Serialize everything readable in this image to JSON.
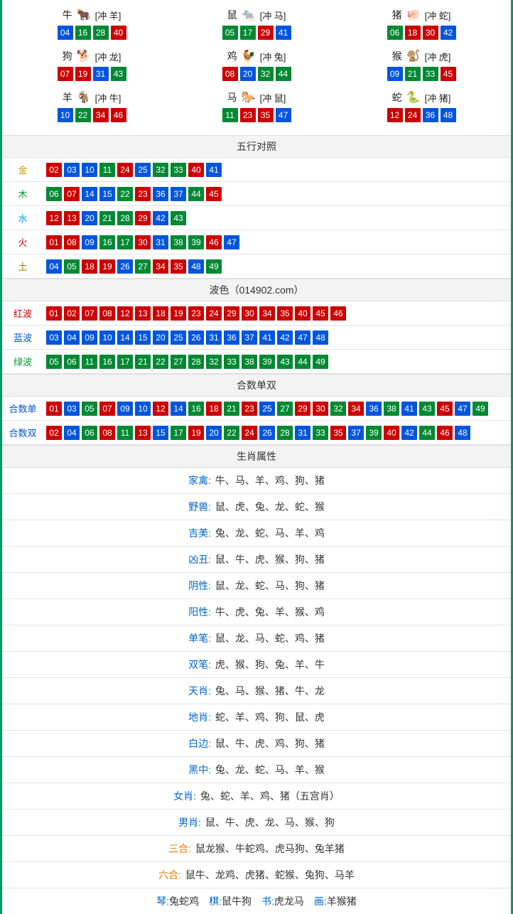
{
  "colors": {
    "border": "#009966",
    "red": "#cc0000",
    "blue": "#0055dd",
    "green": "#008833",
    "row_border": "#e3e3e3",
    "head_bg": "#f3f3f3",
    "link": "#0066cc"
  },
  "ball_style": {
    "width": 22,
    "height": 20,
    "fontsize": 12,
    "gap": 3,
    "radius": 1
  },
  "zodiac": [
    {
      "name": "牛",
      "chong": "[冲 羊]",
      "icon": "🐂",
      "icon_color": "#cc3333",
      "nums": [
        "04",
        "16",
        "28",
        "40"
      ]
    },
    {
      "name": "鼠",
      "chong": "[冲 马]",
      "icon": "🐀",
      "icon_color": "#66bbdd",
      "nums": [
        "05",
        "17",
        "29",
        "41"
      ]
    },
    {
      "name": "猪",
      "chong": "[冲 蛇]",
      "icon": "🐖",
      "icon_color": "#ee88aa",
      "nums": [
        "06",
        "18",
        "30",
        "42"
      ]
    },
    {
      "name": "狗",
      "chong": "[冲 龙]",
      "icon": "🐕",
      "icon_color": "#88bbee",
      "nums": [
        "07",
        "19",
        "31",
        "43"
      ]
    },
    {
      "name": "鸡",
      "chong": "[冲 兔]",
      "icon": "🐓",
      "icon_color": "#eeaa33",
      "nums": [
        "08",
        "20",
        "32",
        "44"
      ]
    },
    {
      "name": "猴",
      "chong": "[冲 虎]",
      "icon": "🐒",
      "icon_color": "#dd7733",
      "nums": [
        "09",
        "21",
        "33",
        "45"
      ]
    },
    {
      "name": "羊",
      "chong": "[冲 牛]",
      "icon": "🐐",
      "icon_color": "#ddbb55",
      "nums": [
        "10",
        "22",
        "34",
        "46"
      ]
    },
    {
      "name": "马",
      "chong": "[冲 鼠]",
      "icon": "🐎",
      "icon_color": "#cc4433",
      "nums": [
        "11",
        "23",
        "35",
        "47"
      ]
    },
    {
      "name": "蛇",
      "chong": "[冲 猪]",
      "icon": "🐍",
      "icon_color": "#55aa44",
      "nums": [
        "12",
        "24",
        "36",
        "48"
      ]
    }
  ],
  "wuxing_title": "五行对照",
  "wuxing": [
    {
      "label": "金",
      "class": "c-gold",
      "nums": [
        "02",
        "03",
        "10",
        "11",
        "24",
        "25",
        "32",
        "33",
        "40",
        "41"
      ]
    },
    {
      "label": "木",
      "class": "c-wood",
      "nums": [
        "06",
        "07",
        "14",
        "15",
        "22",
        "23",
        "36",
        "37",
        "44",
        "45"
      ]
    },
    {
      "label": "水",
      "class": "c-water",
      "nums": [
        "12",
        "13",
        "20",
        "21",
        "28",
        "29",
        "42",
        "43"
      ]
    },
    {
      "label": "火",
      "class": "c-fire",
      "nums": [
        "01",
        "08",
        "09",
        "16",
        "17",
        "30",
        "31",
        "38",
        "39",
        "46",
        "47"
      ]
    },
    {
      "label": "土",
      "class": "c-earth",
      "nums": [
        "04",
        "05",
        "18",
        "19",
        "26",
        "27",
        "34",
        "35",
        "48",
        "49"
      ]
    }
  ],
  "bose_title": "波色（014902.com）",
  "bose": [
    {
      "label": "红波",
      "class": "c-red",
      "nums": [
        "01",
        "02",
        "07",
        "08",
        "12",
        "13",
        "18",
        "19",
        "23",
        "24",
        "29",
        "30",
        "34",
        "35",
        "40",
        "45",
        "46"
      ]
    },
    {
      "label": "蓝波",
      "class": "c-blue",
      "nums": [
        "03",
        "04",
        "09",
        "10",
        "14",
        "15",
        "20",
        "25",
        "26",
        "31",
        "36",
        "37",
        "41",
        "42",
        "47",
        "48"
      ]
    },
    {
      "label": "绿波",
      "class": "c-green",
      "nums": [
        "05",
        "06",
        "11",
        "16",
        "17",
        "21",
        "22",
        "27",
        "28",
        "32",
        "33",
        "38",
        "39",
        "43",
        "44",
        "49"
      ]
    }
  ],
  "heshu_title": "合数单双",
  "heshu": [
    {
      "label": "合数单",
      "class": "c-blue",
      "nums": [
        "01",
        "03",
        "05",
        "07",
        "09",
        "10",
        "12",
        "14",
        "16",
        "18",
        "21",
        "23",
        "25",
        "27",
        "29",
        "30",
        "32",
        "34",
        "36",
        "38",
        "41",
        "43",
        "45",
        "47",
        "49"
      ]
    },
    {
      "label": "合数双",
      "class": "c-blue",
      "nums": [
        "02",
        "04",
        "06",
        "08",
        "11",
        "13",
        "15",
        "17",
        "19",
        "20",
        "22",
        "24",
        "26",
        "28",
        "31",
        "33",
        "35",
        "37",
        "39",
        "40",
        "42",
        "44",
        "46",
        "48"
      ]
    }
  ],
  "attr_title": "生肖属性",
  "attrs": [
    {
      "label": "家禽",
      "value": "牛、马、羊、鸡、狗、猪"
    },
    {
      "label": "野兽",
      "value": "鼠、虎、兔、龙、蛇、猴"
    },
    {
      "label": "吉美",
      "value": "兔、龙、蛇、马、羊、鸡"
    },
    {
      "label": "凶丑",
      "value": "鼠、牛、虎、猴、狗、猪"
    },
    {
      "label": "阴性",
      "value": "鼠、龙、蛇、马、狗、猪"
    },
    {
      "label": "阳性",
      "value": "牛、虎、兔、羊、猴、鸡"
    },
    {
      "label": "单笔",
      "value": "鼠、龙、马、蛇、鸡、猪"
    },
    {
      "label": "双笔",
      "value": "虎、猴、狗、兔、羊、牛"
    },
    {
      "label": "天肖",
      "value": "兔、马、猴、猪、牛、龙"
    },
    {
      "label": "地肖",
      "value": "蛇、羊、鸡、狗、鼠、虎"
    },
    {
      "label": "白边",
      "value": "鼠、牛、虎、鸡、狗、猪"
    },
    {
      "label": "黑中",
      "value": "兔、龙、蛇、马、羊、猴"
    },
    {
      "label": "女肖",
      "value": "兔、蛇、羊、鸡、猪（五宫肖）"
    },
    {
      "label": "男肖",
      "value": "鼠、牛、虎、龙、马、猴、狗"
    },
    {
      "label": "三合",
      "value": "鼠龙猴、牛蛇鸡、虎马狗、兔羊猪",
      "label_class": "c-orange"
    },
    {
      "label": "六合",
      "value": "鼠牛、龙鸡、虎猪、蛇猴、兔狗、马羊",
      "label_class": "c-orange"
    }
  ],
  "footer_parts": [
    {
      "k": "琴",
      "v": "兔蛇鸡"
    },
    {
      "k": "棋",
      "v": "鼠牛狗"
    },
    {
      "k": "书",
      "v": "虎龙马"
    },
    {
      "k": "画",
      "v": "羊猴猪"
    }
  ],
  "red_set": [
    "01",
    "02",
    "07",
    "08",
    "12",
    "13",
    "18",
    "19",
    "23",
    "24",
    "29",
    "30",
    "34",
    "35",
    "40",
    "45",
    "46"
  ],
  "blue_set": [
    "03",
    "04",
    "09",
    "10",
    "14",
    "15",
    "20",
    "25",
    "26",
    "31",
    "36",
    "37",
    "41",
    "42",
    "47",
    "48"
  ],
  "green_set": [
    "05",
    "06",
    "11",
    "16",
    "17",
    "21",
    "22",
    "27",
    "28",
    "32",
    "33",
    "38",
    "39",
    "43",
    "44",
    "49"
  ]
}
